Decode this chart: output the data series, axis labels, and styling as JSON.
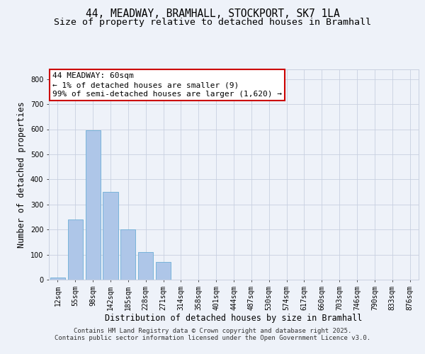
{
  "title_line1": "44, MEADWAY, BRAMHALL, STOCKPORT, SK7 1LA",
  "title_line2": "Size of property relative to detached houses in Bramhall",
  "xlabel": "Distribution of detached houses by size in Bramhall",
  "ylabel": "Number of detached properties",
  "bins": [
    "12sqm",
    "55sqm",
    "98sqm",
    "142sqm",
    "185sqm",
    "228sqm",
    "271sqm",
    "314sqm",
    "358sqm",
    "401sqm",
    "444sqm",
    "487sqm",
    "530sqm",
    "574sqm",
    "617sqm",
    "660sqm",
    "703sqm",
    "746sqm",
    "790sqm",
    "833sqm",
    "876sqm"
  ],
  "values": [
    9,
    240,
    595,
    350,
    200,
    110,
    70,
    0,
    0,
    0,
    0,
    0,
    0,
    0,
    0,
    0,
    0,
    0,
    0,
    0,
    0
  ],
  "bar_color": "#aec6e8",
  "bar_edge_color": "#6baed6",
  "annotation_text": "44 MEADWAY: 60sqm\n← 1% of detached houses are smaller (9)\n99% of semi-detached houses are larger (1,620) →",
  "annotation_box_color": "#ffffff",
  "annotation_box_edge_color": "#cc0000",
  "ylim": [
    0,
    840
  ],
  "yticks": [
    0,
    100,
    200,
    300,
    400,
    500,
    600,
    700,
    800
  ],
  "background_color": "#eef2f9",
  "grid_color": "#c8d0e0",
  "footer_line1": "Contains HM Land Registry data © Crown copyright and database right 2025.",
  "footer_line2": "Contains public sector information licensed under the Open Government Licence v3.0.",
  "title_fontsize": 10.5,
  "subtitle_fontsize": 9.5,
  "axis_label_fontsize": 8.5,
  "tick_fontsize": 7,
  "annotation_fontsize": 8,
  "footer_fontsize": 6.5
}
